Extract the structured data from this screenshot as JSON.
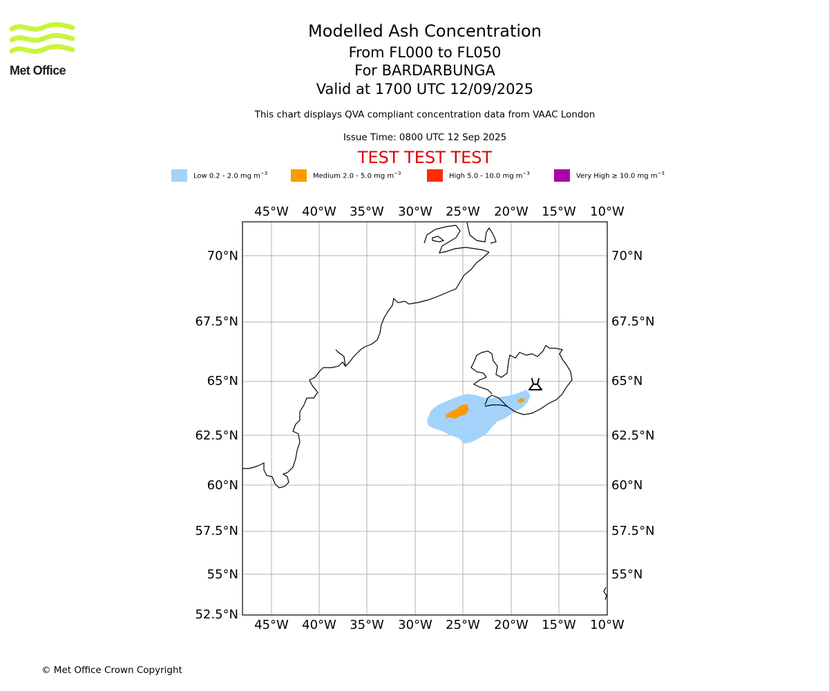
{
  "header": {
    "logo_text": "Met Office",
    "title": "Modelled Ash Concentration",
    "levels": "From FL000 to FL050",
    "volcano": "For BARDARBUNGA",
    "valid": "Valid at 1700 UTC 12/09/2025",
    "description": "This chart displays QVA compliant concentration data from VAAC London",
    "issue_time": "Issue Time: 0800 UTC 12 Sep 2025",
    "test_banner": "TEST TEST TEST"
  },
  "legend": [
    {
      "label": "Low 0.2 - 2.0 mg m",
      "exp": "−3",
      "color": "#a3d3fa"
    },
    {
      "label": "Medium 2.0 - 5.0 mg m",
      "exp": "−3",
      "color": "#ff9a00"
    },
    {
      "label": "High 5.0 - 10.0 mg m",
      "exp": "−3",
      "color": "#ff2a00"
    },
    {
      "label": "Very High  ≥  10.0 mg m",
      "exp": "−3",
      "color": "#ad00ad"
    }
  ],
  "map": {
    "lon_ticks": [
      "45°W",
      "40°W",
      "35°W",
      "30°W",
      "25°W",
      "20°W",
      "15°W",
      "10°W"
    ],
    "lat_ticks": [
      "70°N",
      "67.5°N",
      "65°N",
      "62.5°N",
      "60°N",
      "57.5°N",
      "55°N",
      "52.5°N"
    ],
    "volcano_icon": "volcano-icon",
    "grid": true
  },
  "footer": {
    "copyright": "© Met Office Crown Copyright"
  }
}
